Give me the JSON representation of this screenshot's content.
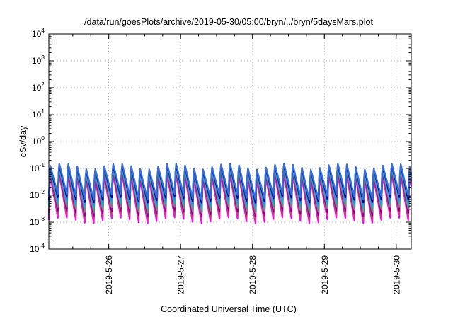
{
  "chart_data": {
    "type": "line",
    "title": "/data/run/goesPlots/archive/2019-05-30/05:00/bryn/../bryn/5daysMars.plot",
    "xlabel": "Coordinated Universal Time (UTC)",
    "ylabel": "cSv/day",
    "yscale": "log",
    "ylim": [
      0.0001,
      10000
    ],
    "y_ticks": [
      {
        "base": "10",
        "exp": "-4",
        "value": 0.0001
      },
      {
        "base": "10",
        "exp": "-3",
        "value": 0.001
      },
      {
        "base": "10",
        "exp": "-2",
        "value": 0.01
      },
      {
        "base": "10",
        "exp": "-1",
        "value": 0.1
      },
      {
        "base": "10",
        "exp": "0",
        "value": 1
      },
      {
        "base": "10",
        "exp": "1",
        "value": 10
      },
      {
        "base": "10",
        "exp": "2",
        "value": 100
      },
      {
        "base": "10",
        "exp": "3",
        "value": 1000
      },
      {
        "base": "10",
        "exp": "4",
        "value": 10000
      }
    ],
    "xlim": [
      "2019-05-25 04:00",
      "2019-05-30 05:00"
    ],
    "x_ticks": [
      "2019-5-26",
      "2019-5-27",
      "2019-5-28",
      "2019-5-29",
      "2019-5-30"
    ],
    "grid": true,
    "legend": "none",
    "sawtooth_period_hours": 3,
    "series": [
      {
        "color": "#ff00ff",
        "peak": 0.06,
        "trough": 0.0012
      },
      {
        "color": "#c83c78",
        "peak": 0.075,
        "trough": 0.0016
      },
      {
        "color": "#8b008b",
        "peak": 0.085,
        "trough": 0.0022
      },
      {
        "color": "#808080",
        "peak": 0.095,
        "trough": 0.003
      },
      {
        "color": "#20b2aa",
        "peak": 0.11,
        "trough": 0.004
      },
      {
        "color": "#1e90ff",
        "peak": 0.12,
        "trough": 0.0055
      },
      {
        "color": "#00008b",
        "peak": 0.13,
        "trough": 0.007
      },
      {
        "color": "#3a6fd8",
        "peak": 0.14,
        "trough": 0.009
      }
    ]
  }
}
